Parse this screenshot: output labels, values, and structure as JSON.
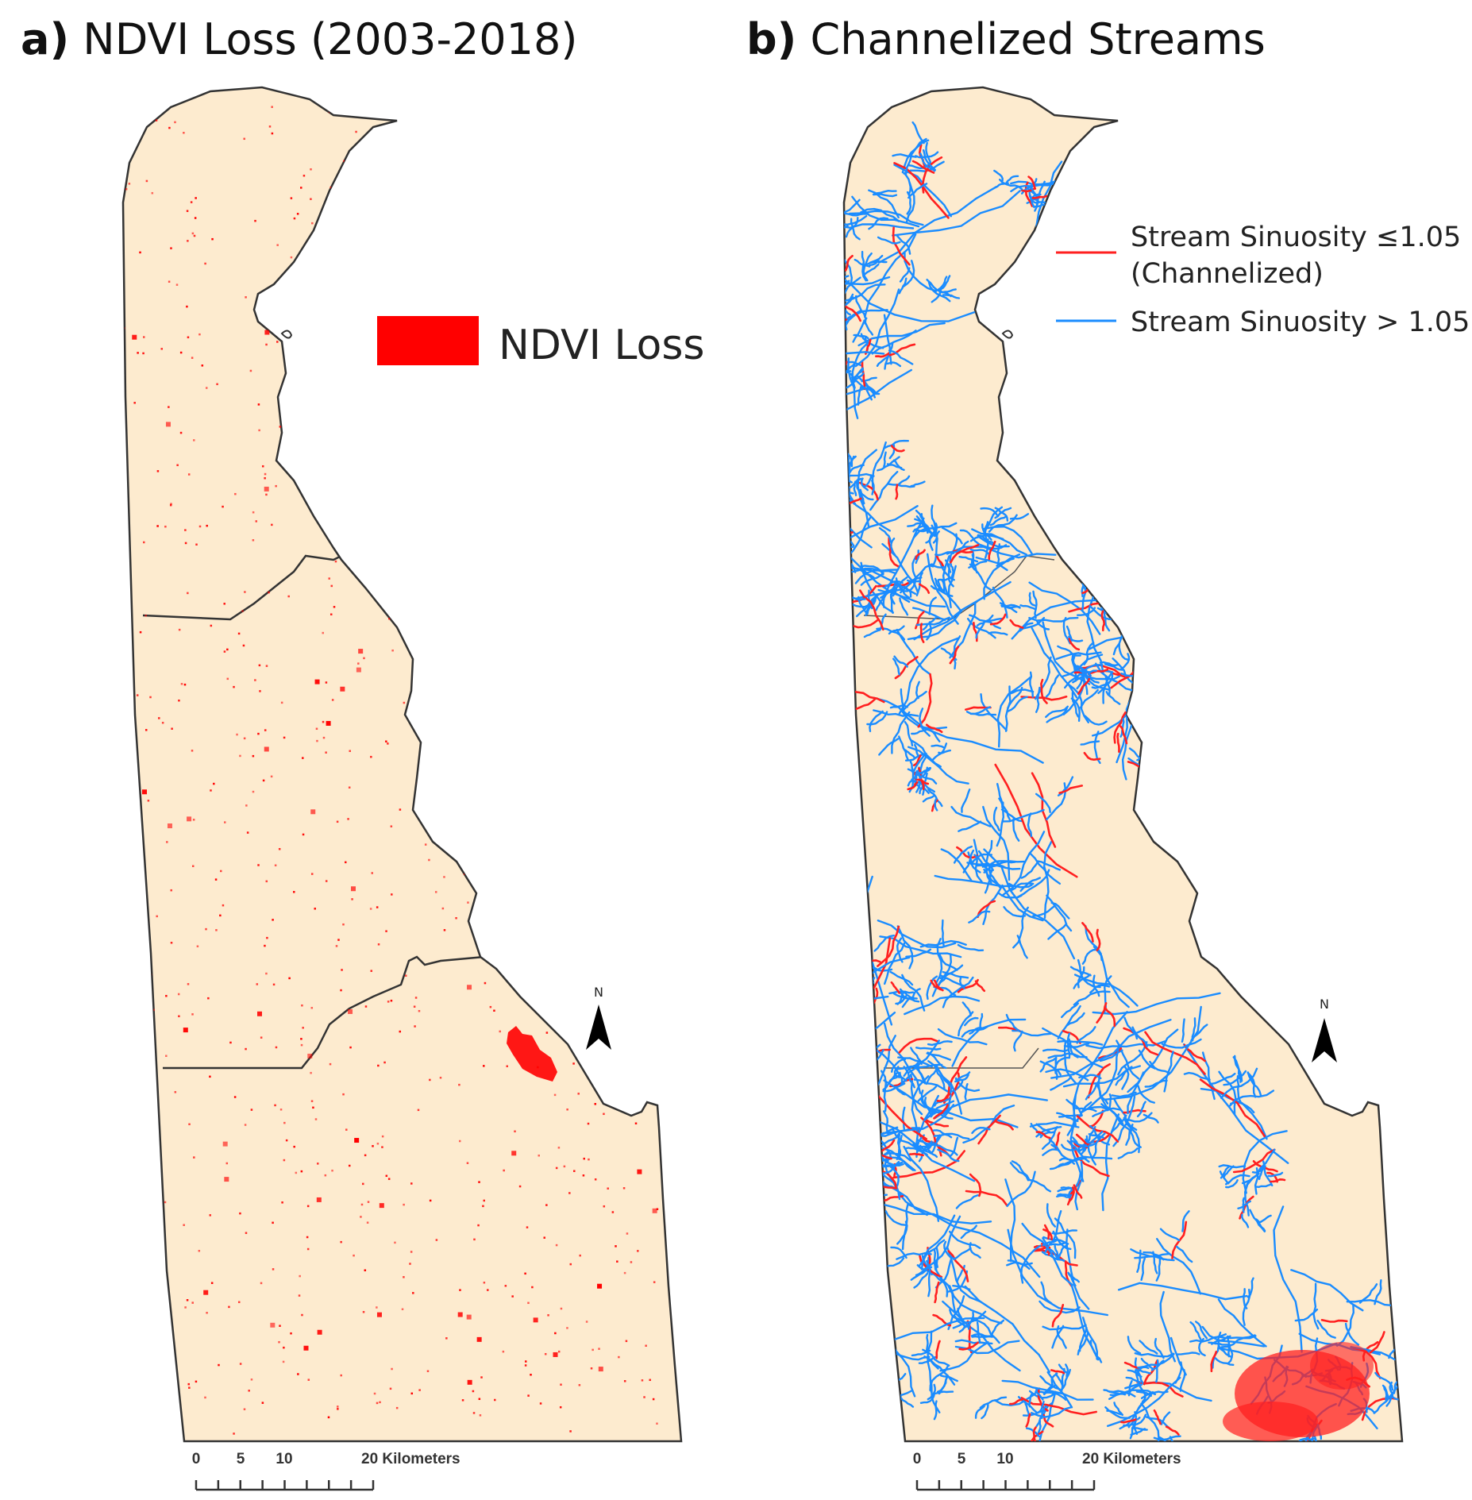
{
  "panel_a": {
    "letter": "a)",
    "title": "NDVI Loss (2003-2018)",
    "legend_label": "NDVI Loss",
    "legend_color": "#ff0000",
    "north_label": "N",
    "scalebar": {
      "t0": "0",
      "t5": "5",
      "t10": "10",
      "t20": "20 Kilometers"
    }
  },
  "panel_b": {
    "letter": "b)",
    "title": "Channelized Streams",
    "legend": {
      "channelized_line1": "Stream Sinuosity ≤1.05",
      "channelized_line2": "(Channelized)",
      "channelized_color": "#ff2020",
      "natural": "Stream Sinuosity > 1.05",
      "natural_color": "#1a8cff"
    },
    "north_label": "N",
    "scalebar": {
      "t0": "0",
      "t5": "5",
      "t10": "10",
      "t20": "20 Kilometers"
    }
  },
  "map_fill_color": "#fdebcf",
  "outline_color": "#333333"
}
